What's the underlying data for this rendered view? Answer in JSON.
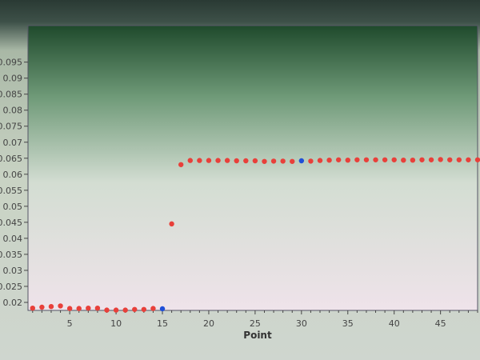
{
  "chart_data": {
    "type": "scatter",
    "title": "",
    "xlabel": "Point",
    "ylabel": "",
    "xlim": [
      0.5,
      49
    ],
    "ylim": [
      0.0175,
      0.1064
    ],
    "x_ticks": [
      5,
      10,
      15,
      20,
      25,
      30,
      35,
      40,
      45
    ],
    "y_ticks": [
      "0.02",
      "0.025",
      "0.03",
      "0.035",
      "0.04",
      "0.045",
      "0.05",
      "0.055",
      "0.06",
      "0.065",
      "0.07",
      "0.075",
      "0.08",
      "0.085",
      "0.09",
      "0.095"
    ],
    "grid": false,
    "colors": {
      "normal": "#e8403a",
      "highlight": "#1f4fd8"
    },
    "points": [
      {
        "x": 1,
        "y": 0.0182
      },
      {
        "x": 2,
        "y": 0.0185
      },
      {
        "x": 3,
        "y": 0.0187
      },
      {
        "x": 4,
        "y": 0.0189
      },
      {
        "x": 5,
        "y": 0.0181
      },
      {
        "x": 6,
        "y": 0.0181
      },
      {
        "x": 7,
        "y": 0.0182
      },
      {
        "x": 8,
        "y": 0.0182
      },
      {
        "x": 9,
        "y": 0.0176
      },
      {
        "x": 10,
        "y": 0.0176
      },
      {
        "x": 11,
        "y": 0.0176
      },
      {
        "x": 12,
        "y": 0.0178
      },
      {
        "x": 13,
        "y": 0.0178
      },
      {
        "x": 14,
        "y": 0.0181
      },
      {
        "x": 15,
        "y": 0.018,
        "highlight": true
      },
      {
        "x": 16,
        "y": 0.0445
      },
      {
        "x": 17,
        "y": 0.063
      },
      {
        "x": 18,
        "y": 0.0643
      },
      {
        "x": 19,
        "y": 0.0643
      },
      {
        "x": 20,
        "y": 0.0643
      },
      {
        "x": 21,
        "y": 0.0643
      },
      {
        "x": 22,
        "y": 0.0643
      },
      {
        "x": 23,
        "y": 0.0642
      },
      {
        "x": 24,
        "y": 0.0642
      },
      {
        "x": 25,
        "y": 0.0642
      },
      {
        "x": 26,
        "y": 0.064
      },
      {
        "x": 27,
        "y": 0.0641
      },
      {
        "x": 28,
        "y": 0.0641
      },
      {
        "x": 29,
        "y": 0.064
      },
      {
        "x": 30,
        "y": 0.0642,
        "highlight": true
      },
      {
        "x": 31,
        "y": 0.0641
      },
      {
        "x": 32,
        "y": 0.0643
      },
      {
        "x": 33,
        "y": 0.0644
      },
      {
        "x": 34,
        "y": 0.0645
      },
      {
        "x": 35,
        "y": 0.0644
      },
      {
        "x": 36,
        "y": 0.0645
      },
      {
        "x": 37,
        "y": 0.0645
      },
      {
        "x": 38,
        "y": 0.0645
      },
      {
        "x": 39,
        "y": 0.0645
      },
      {
        "x": 40,
        "y": 0.0645
      },
      {
        "x": 41,
        "y": 0.0644
      },
      {
        "x": 42,
        "y": 0.0644
      },
      {
        "x": 43,
        "y": 0.0645
      },
      {
        "x": 44,
        "y": 0.0645
      },
      {
        "x": 45,
        "y": 0.0646
      },
      {
        "x": 46,
        "y": 0.0645
      },
      {
        "x": 47,
        "y": 0.0645
      },
      {
        "x": 48,
        "y": 0.0645
      },
      {
        "x": 49,
        "y": 0.0645
      }
    ]
  }
}
